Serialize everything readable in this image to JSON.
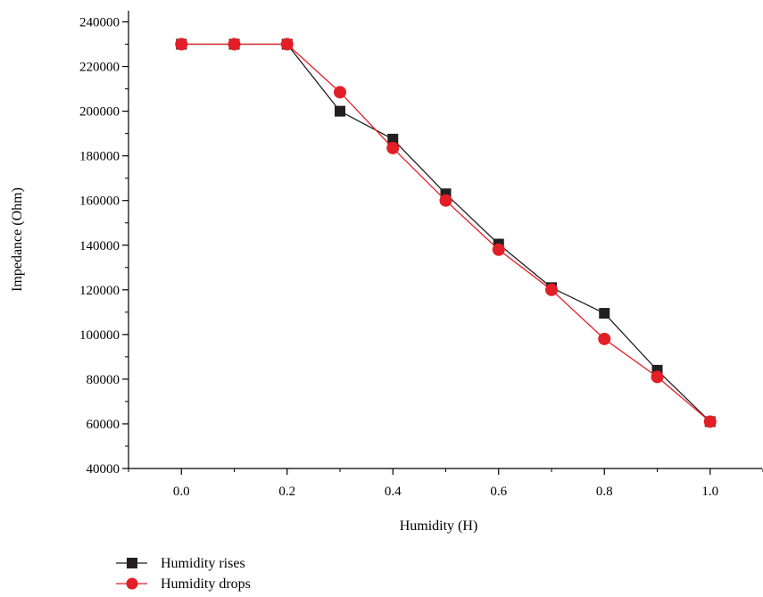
{
  "chart_data": {
    "type": "line",
    "title": "",
    "xlabel": "Humidity (H)",
    "ylabel": "Impedance (Ohm)",
    "xlim": [
      -0.1,
      1.1
    ],
    "ylim": [
      40000,
      245000
    ],
    "xticks": [
      0.0,
      0.2,
      0.4,
      0.6,
      0.8,
      1.0
    ],
    "xtick_labels": [
      "0.0",
      "0.2",
      "0.4",
      "0.6",
      "0.8",
      "1.0"
    ],
    "yticks": [
      40000,
      60000,
      80000,
      100000,
      120000,
      140000,
      160000,
      180000,
      200000,
      220000,
      240000
    ],
    "ytick_labels": [
      "40000",
      "60000",
      "80000",
      "100000",
      "120000",
      "140000",
      "160000",
      "180000",
      "200000",
      "220000",
      "240000"
    ],
    "x": [
      0.0,
      0.1,
      0.2,
      0.3,
      0.4,
      0.5,
      0.6,
      0.7,
      0.8,
      0.9,
      1.0
    ],
    "series": [
      {
        "name": "Humidity rises",
        "color": "#231f20",
        "marker": "square",
        "values": [
          230000,
          230000,
          230000,
          200000,
          187500,
          163000,
          140500,
          121000,
          109500,
          84000,
          61000
        ]
      },
      {
        "name": "Humidity drops",
        "color": "#e41e26",
        "marker": "circle",
        "values": [
          230000,
          230000,
          230000,
          208500,
          183500,
          160000,
          138000,
          120000,
          98000,
          81000,
          61000
        ]
      }
    ],
    "grid": false,
    "legend_position": "bottom-left"
  }
}
